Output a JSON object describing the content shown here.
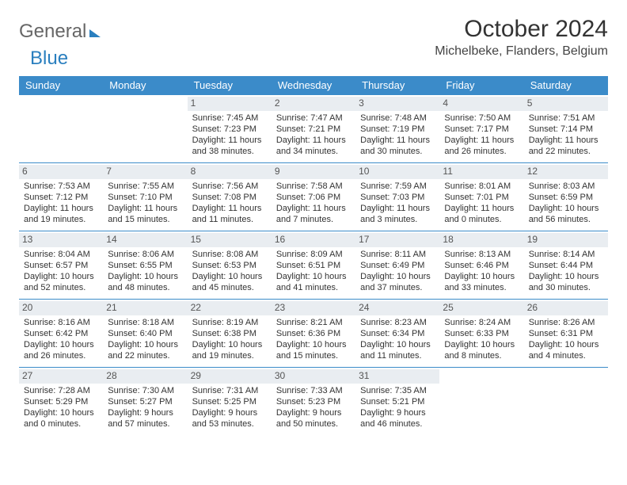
{
  "logo": {
    "part1": "General",
    "part2": "Blue"
  },
  "title": "October 2024",
  "location": "Michelbeke, Flanders, Belgium",
  "colors": {
    "header_bg": "#3b8bc9",
    "header_text": "#ffffff",
    "daynum_bg": "#e9edf1",
    "border": "#3b8bc9",
    "text": "#333333"
  },
  "weekdays": [
    "Sunday",
    "Monday",
    "Tuesday",
    "Wednesday",
    "Thursday",
    "Friday",
    "Saturday"
  ],
  "grid": [
    [
      null,
      null,
      {
        "n": "1",
        "sr": "7:45 AM",
        "ss": "7:23 PM",
        "dl": "11 hours and 38 minutes."
      },
      {
        "n": "2",
        "sr": "7:47 AM",
        "ss": "7:21 PM",
        "dl": "11 hours and 34 minutes."
      },
      {
        "n": "3",
        "sr": "7:48 AM",
        "ss": "7:19 PM",
        "dl": "11 hours and 30 minutes."
      },
      {
        "n": "4",
        "sr": "7:50 AM",
        "ss": "7:17 PM",
        "dl": "11 hours and 26 minutes."
      },
      {
        "n": "5",
        "sr": "7:51 AM",
        "ss": "7:14 PM",
        "dl": "11 hours and 22 minutes."
      }
    ],
    [
      {
        "n": "6",
        "sr": "7:53 AM",
        "ss": "7:12 PM",
        "dl": "11 hours and 19 minutes."
      },
      {
        "n": "7",
        "sr": "7:55 AM",
        "ss": "7:10 PM",
        "dl": "11 hours and 15 minutes."
      },
      {
        "n": "8",
        "sr": "7:56 AM",
        "ss": "7:08 PM",
        "dl": "11 hours and 11 minutes."
      },
      {
        "n": "9",
        "sr": "7:58 AM",
        "ss": "7:06 PM",
        "dl": "11 hours and 7 minutes."
      },
      {
        "n": "10",
        "sr": "7:59 AM",
        "ss": "7:03 PM",
        "dl": "11 hours and 3 minutes."
      },
      {
        "n": "11",
        "sr": "8:01 AM",
        "ss": "7:01 PM",
        "dl": "11 hours and 0 minutes."
      },
      {
        "n": "12",
        "sr": "8:03 AM",
        "ss": "6:59 PM",
        "dl": "10 hours and 56 minutes."
      }
    ],
    [
      {
        "n": "13",
        "sr": "8:04 AM",
        "ss": "6:57 PM",
        "dl": "10 hours and 52 minutes."
      },
      {
        "n": "14",
        "sr": "8:06 AM",
        "ss": "6:55 PM",
        "dl": "10 hours and 48 minutes."
      },
      {
        "n": "15",
        "sr": "8:08 AM",
        "ss": "6:53 PM",
        "dl": "10 hours and 45 minutes."
      },
      {
        "n": "16",
        "sr": "8:09 AM",
        "ss": "6:51 PM",
        "dl": "10 hours and 41 minutes."
      },
      {
        "n": "17",
        "sr": "8:11 AM",
        "ss": "6:49 PM",
        "dl": "10 hours and 37 minutes."
      },
      {
        "n": "18",
        "sr": "8:13 AM",
        "ss": "6:46 PM",
        "dl": "10 hours and 33 minutes."
      },
      {
        "n": "19",
        "sr": "8:14 AM",
        "ss": "6:44 PM",
        "dl": "10 hours and 30 minutes."
      }
    ],
    [
      {
        "n": "20",
        "sr": "8:16 AM",
        "ss": "6:42 PM",
        "dl": "10 hours and 26 minutes."
      },
      {
        "n": "21",
        "sr": "8:18 AM",
        "ss": "6:40 PM",
        "dl": "10 hours and 22 minutes."
      },
      {
        "n": "22",
        "sr": "8:19 AM",
        "ss": "6:38 PM",
        "dl": "10 hours and 19 minutes."
      },
      {
        "n": "23",
        "sr": "8:21 AM",
        "ss": "6:36 PM",
        "dl": "10 hours and 15 minutes."
      },
      {
        "n": "24",
        "sr": "8:23 AM",
        "ss": "6:34 PM",
        "dl": "10 hours and 11 minutes."
      },
      {
        "n": "25",
        "sr": "8:24 AM",
        "ss": "6:33 PM",
        "dl": "10 hours and 8 minutes."
      },
      {
        "n": "26",
        "sr": "8:26 AM",
        "ss": "6:31 PM",
        "dl": "10 hours and 4 minutes."
      }
    ],
    [
      {
        "n": "27",
        "sr": "7:28 AM",
        "ss": "5:29 PM",
        "dl": "10 hours and 0 minutes."
      },
      {
        "n": "28",
        "sr": "7:30 AM",
        "ss": "5:27 PM",
        "dl": "9 hours and 57 minutes."
      },
      {
        "n": "29",
        "sr": "7:31 AM",
        "ss": "5:25 PM",
        "dl": "9 hours and 53 minutes."
      },
      {
        "n": "30",
        "sr": "7:33 AM",
        "ss": "5:23 PM",
        "dl": "9 hours and 50 minutes."
      },
      {
        "n": "31",
        "sr": "7:35 AM",
        "ss": "5:21 PM",
        "dl": "9 hours and 46 minutes."
      },
      null,
      null
    ]
  ],
  "labels": {
    "sunrise": "Sunrise: ",
    "sunset": "Sunset: ",
    "daylight": "Daylight: "
  }
}
